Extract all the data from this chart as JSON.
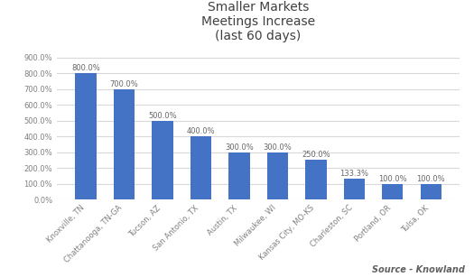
{
  "title": "Smaller Markets\nMeetings Increase\n(last 60 days)",
  "categories": [
    "Knoxville, TN",
    "Chattanooga, TN-GA",
    "Tucson, AZ",
    "San Antonio, TX",
    "Austin, TX",
    "Milwaukee, WI",
    "Kansas City, MO-KS",
    "Charleston, SC",
    "Portland, OR",
    "Tulsa, OK"
  ],
  "values": [
    800.0,
    700.0,
    500.0,
    400.0,
    300.0,
    300.0,
    250.0,
    133.3,
    100.0,
    100.0
  ],
  "labels": [
    "800.0%",
    "700.0%",
    "500.0%",
    "400.0%",
    "300.0%",
    "300.0%",
    "250.0%",
    "133.3%",
    "100.0%",
    "100.0%"
  ],
  "bar_color": "#4472C4",
  "ylim": [
    0,
    950
  ],
  "yticks": [
    0,
    100,
    200,
    300,
    400,
    500,
    600,
    700,
    800,
    900
  ],
  "background_color": "#ffffff",
  "grid_color": "#d9d9d9",
  "source_text": "Source - Knowland",
  "title_fontsize": 10,
  "label_fontsize": 6.0,
  "tick_fontsize": 6.0,
  "source_fontsize": 7,
  "bar_width": 0.55
}
